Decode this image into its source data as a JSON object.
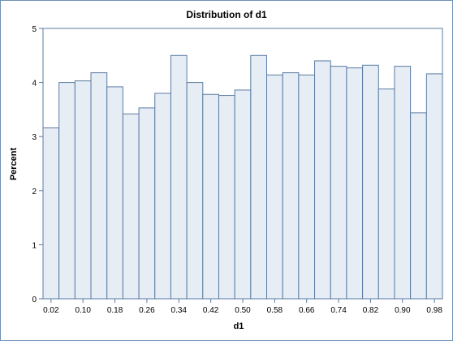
{
  "chart_data": {
    "type": "bar",
    "title": "Distribution of d1",
    "xlabel": "d1",
    "ylabel": "Percent",
    "xlim": [
      0.0,
      1.0
    ],
    "ylim": [
      0,
      5
    ],
    "bin_width": 0.04,
    "x_ticks": [
      "0.02",
      "0.10",
      "0.18",
      "0.26",
      "0.34",
      "0.42",
      "0.50",
      "0.58",
      "0.66",
      "0.74",
      "0.82",
      "0.90",
      "0.98"
    ],
    "y_ticks": [
      "0",
      "1",
      "2",
      "3",
      "4",
      "5"
    ],
    "bin_midpoints": [
      0.02,
      0.06,
      0.1,
      0.14,
      0.18,
      0.22,
      0.26,
      0.3,
      0.34,
      0.38,
      0.42,
      0.46,
      0.5,
      0.54,
      0.58,
      0.62,
      0.66,
      0.7,
      0.74,
      0.78,
      0.82,
      0.86,
      0.9,
      0.94,
      0.98
    ],
    "values": [
      3.16,
      4.0,
      4.03,
      4.18,
      3.92,
      3.42,
      3.53,
      3.8,
      4.5,
      4.0,
      3.78,
      3.76,
      3.86,
      4.5,
      4.14,
      4.18,
      4.14,
      4.4,
      4.3,
      4.27,
      4.32,
      3.88,
      4.3,
      3.44,
      4.16
    ],
    "grid": false,
    "legend": "none",
    "colors": {
      "bar_fill": "#e6edf5",
      "bar_stroke": "#5a7ba2",
      "axis": "#5a7ba2",
      "outline": "#6d8fb6"
    }
  }
}
